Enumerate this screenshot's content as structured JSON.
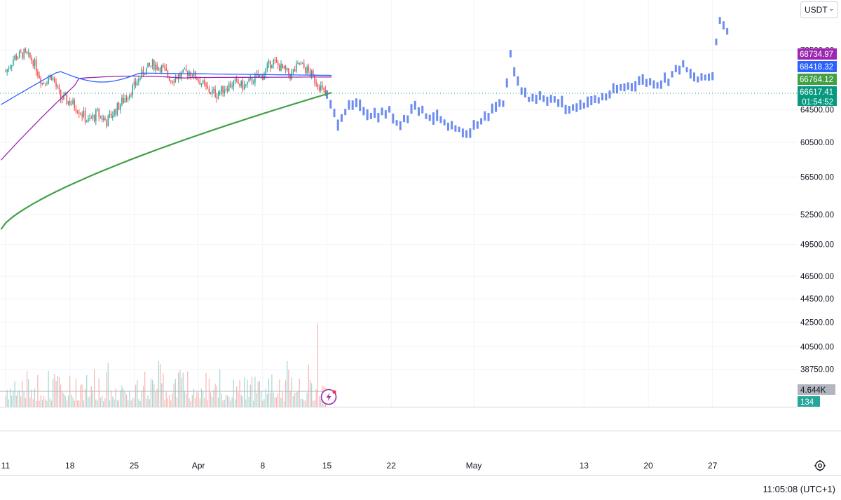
{
  "currency": {
    "label": "USDT",
    "chevron_icon": "chevron-down-icon"
  },
  "footer": {
    "time": "11:05:08 (UTC+1)",
    "settings_icon": "gear-icon"
  },
  "chart_data": {
    "type": "candlestick",
    "y_axis": {
      "tick_labels": [
        "72500.00",
        "64500.00",
        "60500.00",
        "56500.00",
        "52500.00",
        "49500.00",
        "46500.00",
        "44500.00",
        "42500.00",
        "40500.00",
        "38750.00"
      ],
      "scale": "logarithmic"
    },
    "x_axis": {
      "tick_labels": [
        "11",
        "18",
        "25",
        "Apr",
        "8",
        "15",
        "22",
        "May",
        "13",
        "20",
        "27"
      ]
    },
    "price_labels": [
      {
        "text": "68734.97",
        "color": "#9c27b0"
      },
      {
        "text": "68418.32",
        "color": "#2962ff"
      },
      {
        "text": "66764.12",
        "color": "#43a047"
      },
      {
        "text": "66617.41",
        "color": "#089981"
      },
      {
        "text": "01:54:52",
        "color": "#089981"
      }
    ],
    "volume_labels": [
      {
        "text": "4.644K",
        "color": "#b2b5be"
      },
      {
        "text": "134",
        "color": "#26a69a"
      }
    ],
    "series": [
      {
        "role": "price candles"
      },
      {
        "role": "moving average",
        "color": "#2962ff"
      },
      {
        "role": "moving average",
        "color": "#9c27b0"
      },
      {
        "role": "moving average",
        "color": "#43a047"
      },
      {
        "role": "projection bars",
        "color": "#6c8cf0"
      }
    ],
    "projection_path": [
      [
        0,
        66000
      ],
      [
        3,
        63000
      ],
      [
        5,
        64500
      ],
      [
        8,
        65000
      ],
      [
        12,
        64000
      ],
      [
        14,
        63800
      ],
      [
        17,
        64200
      ],
      [
        19,
        63000
      ],
      [
        22,
        63500
      ],
      [
        24,
        65500
      ],
      [
        26,
        64200
      ],
      [
        28,
        63800
      ],
      [
        31,
        63200
      ],
      [
        33,
        62000
      ],
      [
        36,
        61800
      ],
      [
        38,
        61500
      ],
      [
        40,
        62500
      ],
      [
        42,
        63000
      ],
      [
        45,
        64500
      ],
      [
        48,
        65500
      ],
      [
        50,
        71500
      ],
      [
        52,
        68000
      ],
      [
        55,
        66000
      ],
      [
        58,
        66300
      ],
      [
        61,
        65800
      ],
      [
        64,
        65200
      ],
      [
        66,
        64500
      ],
      [
        68,
        65000
      ],
      [
        71,
        65500
      ],
      [
        74,
        65800
      ],
      [
        77,
        66500
      ],
      [
        80,
        67200
      ],
      [
        83,
        67800
      ],
      [
        86,
        68300
      ],
      [
        90,
        68000
      ],
      [
        93,
        68600
      ],
      [
        95,
        69800
      ],
      [
        97,
        70300
      ],
      [
        99,
        69000
      ],
      [
        101,
        68400
      ],
      [
        103,
        68700
      ],
      [
        105,
        69100
      ],
      [
        106,
        73800
      ],
      [
        107,
        77200
      ],
      [
        108,
        76000
      ],
      [
        109,
        75800
      ]
    ],
    "grid": true,
    "legend": "none"
  }
}
